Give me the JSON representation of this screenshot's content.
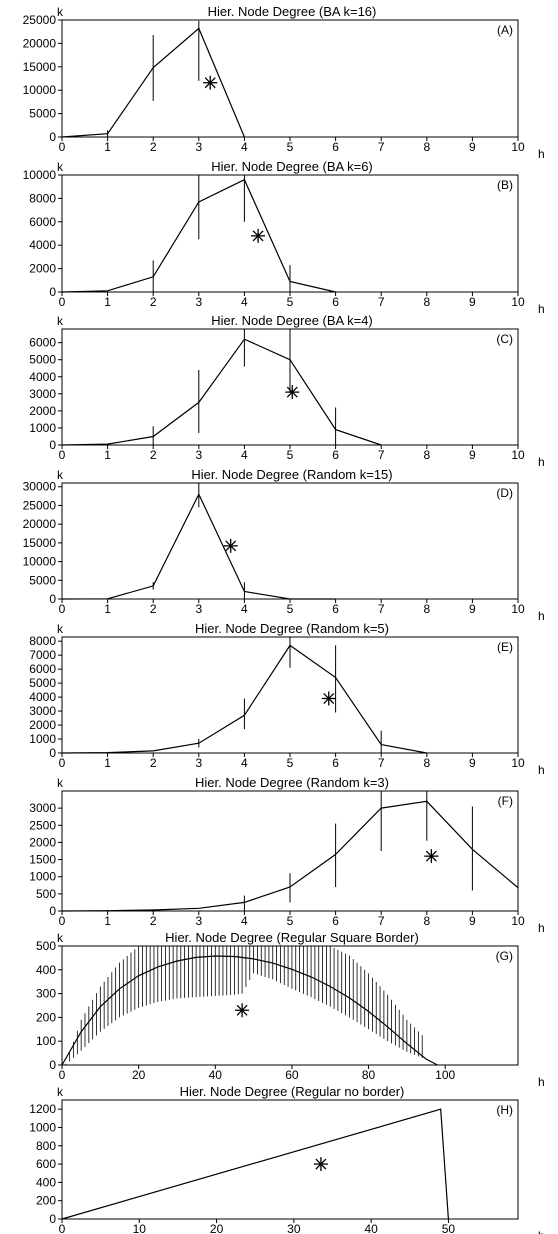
{
  "chart_data": [
    {
      "type": "line",
      "title": "Hier. Node Degree (BA k=16)",
      "ylabel": "k",
      "xlabel": "h",
      "panel": "(A)",
      "xlim": [
        0,
        10
      ],
      "ylim": [
        0,
        25000
      ],
      "xticks": [
        0,
        1,
        2,
        3,
        4,
        5,
        6,
        7,
        8,
        9,
        10
      ],
      "yticks": [
        0,
        5000,
        10000,
        15000,
        20000,
        25000
      ],
      "series": [
        {
          "x": [
            0,
            1,
            2,
            3,
            4
          ],
          "y": [
            0,
            700,
            14800,
            23200,
            0
          ]
        }
      ],
      "error_bars": [
        {
          "x": 1,
          "low": 0,
          "high": 1400
        },
        {
          "x": 2,
          "low": 7700,
          "high": 21800
        },
        {
          "x": 3,
          "low": 12000,
          "high": 24800
        }
      ],
      "marker": {
        "x": 3.25,
        "y": 11600,
        "symbol": "asterisk"
      }
    },
    {
      "type": "line",
      "title": "Hier. Node Degree (BA k=6)",
      "ylabel": "k",
      "xlabel": "h",
      "panel": "(B)",
      "xlim": [
        0,
        10
      ],
      "ylim": [
        0,
        10000
      ],
      "xticks": [
        0,
        1,
        2,
        3,
        4,
        5,
        6,
        7,
        8,
        9,
        10
      ],
      "yticks": [
        0,
        2000,
        4000,
        6000,
        8000,
        10000
      ],
      "series": [
        {
          "x": [
            0,
            1,
            2,
            3,
            4,
            5,
            6
          ],
          "y": [
            0,
            100,
            1300,
            7700,
            9600,
            900,
            0
          ]
        }
      ],
      "error_bars": [
        {
          "x": 2,
          "low": 0,
          "high": 2700
        },
        {
          "x": 3,
          "low": 4500,
          "high": 10400
        },
        {
          "x": 4,
          "low": 6000,
          "high": 10400
        },
        {
          "x": 5,
          "low": 0,
          "high": 2300
        }
      ],
      "marker": {
        "x": 4.3,
        "y": 4800,
        "symbol": "asterisk"
      }
    },
    {
      "type": "line",
      "title": "Hier. Node Degree (BA k=4)",
      "ylabel": "k",
      "xlabel": "h",
      "panel": "(C)",
      "xlim": [
        0,
        10
      ],
      "ylim": [
        0,
        6800
      ],
      "xticks": [
        0,
        1,
        2,
        3,
        4,
        5,
        6,
        7,
        8,
        9,
        10
      ],
      "yticks": [
        0,
        1000,
        2000,
        3000,
        4000,
        5000,
        6000
      ],
      "series": [
        {
          "x": [
            0,
            1,
            2,
            3,
            4,
            5,
            6,
            7
          ],
          "y": [
            0,
            50,
            500,
            2500,
            6200,
            5000,
            900,
            0
          ]
        }
      ],
      "error_bars": [
        {
          "x": 2,
          "low": 0,
          "high": 1100
        },
        {
          "x": 3,
          "low": 700,
          "high": 4400
        },
        {
          "x": 4,
          "low": 4600,
          "high": 6800
        },
        {
          "x": 5,
          "low": 3100,
          "high": 6800
        },
        {
          "x": 6,
          "low": 0,
          "high": 2200
        }
      ],
      "marker": {
        "x": 5.05,
        "y": 3100,
        "symbol": "asterisk"
      }
    },
    {
      "type": "line",
      "title": "Hier. Node Degree (Random k=15)",
      "ylabel": "k",
      "xlabel": "h",
      "panel": "(D)",
      "xlim": [
        0,
        10
      ],
      "ylim": [
        0,
        31000
      ],
      "xticks": [
        0,
        1,
        2,
        3,
        4,
        5,
        6,
        7,
        8,
        9,
        10
      ],
      "yticks": [
        0,
        5000,
        10000,
        15000,
        20000,
        25000,
        30000
      ],
      "series": [
        {
          "x": [
            0,
            1,
            2,
            3,
            4,
            5,
            6
          ],
          "y": [
            0,
            50,
            3500,
            28000,
            2000,
            0,
            0
          ]
        }
      ],
      "error_bars": [
        {
          "x": 2,
          "low": 2500,
          "high": 4500
        },
        {
          "x": 3,
          "low": 24500,
          "high": 31000
        },
        {
          "x": 4,
          "low": 0,
          "high": 4500
        }
      ],
      "marker": {
        "x": 3.7,
        "y": 14200,
        "symbol": "asterisk"
      }
    },
    {
      "type": "line",
      "title": "Hier. Node Degree (Random k=5)",
      "ylabel": "k",
      "xlabel": "h",
      "panel": "(E)",
      "xlim": [
        0,
        10
      ],
      "ylim": [
        0,
        8300
      ],
      "xticks": [
        0,
        1,
        2,
        3,
        4,
        5,
        6,
        7,
        8,
        9,
        10
      ],
      "yticks": [
        0,
        1000,
        2000,
        3000,
        4000,
        5000,
        6000,
        7000,
        8000
      ],
      "series": [
        {
          "x": [
            0,
            1,
            2,
            3,
            4,
            5,
            6,
            7,
            8
          ],
          "y": [
            0,
            30,
            150,
            700,
            2700,
            7700,
            5400,
            600,
            0
          ]
        }
      ],
      "error_bars": [
        {
          "x": 3,
          "low": 400,
          "high": 1000
        },
        {
          "x": 4,
          "low": 1700,
          "high": 3900
        },
        {
          "x": 5,
          "low": 6100,
          "high": 8300
        },
        {
          "x": 6,
          "low": 2900,
          "high": 7700
        },
        {
          "x": 7,
          "low": 0,
          "high": 1600
        }
      ],
      "marker": {
        "x": 5.85,
        "y": 3900,
        "symbol": "asterisk"
      }
    },
    {
      "type": "line",
      "title": "Hier. Node Degree (Random k=3)",
      "ylabel": "k",
      "xlabel": "h",
      "panel": "(F)",
      "xlim": [
        0,
        10
      ],
      "ylim": [
        0,
        3500
      ],
      "xticks": [
        0,
        1,
        2,
        3,
        4,
        5,
        6,
        7,
        8,
        9,
        10
      ],
      "yticks": [
        0,
        500,
        1000,
        1500,
        2000,
        2500,
        3000
      ],
      "series": [
        {
          "x": [
            0,
            1,
            2,
            3,
            4,
            5,
            6,
            7,
            8,
            9,
            10
          ],
          "y": [
            0,
            10,
            30,
            80,
            250,
            700,
            1650,
            3000,
            3200,
            1800,
            680
          ]
        }
      ],
      "error_bars": [
        {
          "x": 4,
          "low": 0,
          "high": 450
        },
        {
          "x": 5,
          "low": 250,
          "high": 1100
        },
        {
          "x": 6,
          "low": 700,
          "high": 2550
        },
        {
          "x": 7,
          "low": 1750,
          "high": 3500
        },
        {
          "x": 8,
          "low": 2050,
          "high": 3500
        },
        {
          "x": 9,
          "low": 600,
          "high": 3050
        }
      ],
      "marker": {
        "x": 8.1,
        "y": 1600,
        "symbol": "asterisk"
      }
    },
    {
      "type": "line",
      "title": "Hier. Node Degree (Regular Square Border)",
      "ylabel": "k",
      "xlabel": "h",
      "panel": "(G)",
      "xlim": [
        0,
        119
      ],
      "ylim": [
        0,
        500
      ],
      "xticks": [
        0,
        20,
        40,
        60,
        80,
        100
      ],
      "yticks": [
        0,
        100,
        200,
        300,
        400,
        500
      ],
      "series": [
        {
          "x": [
            0,
            5,
            10,
            15,
            20,
            25,
            30,
            35,
            40,
            45,
            50,
            55,
            60,
            65,
            70,
            75,
            80,
            85,
            90,
            95,
            98
          ],
          "y": [
            0,
            140,
            245,
            320,
            375,
            412,
            437,
            452,
            458,
            456,
            446,
            428,
            402,
            370,
            330,
            282,
            225,
            160,
            90,
            25,
            0
          ]
        }
      ],
      "error_band": {
        "x": [
          1,
          5,
          10,
          15,
          20,
          25,
          30,
          35,
          40,
          45,
          47,
          50,
          55,
          60,
          65,
          70,
          75,
          80,
          85,
          90,
          94
        ],
        "low": [
          0,
          60,
          140,
          200,
          240,
          265,
          280,
          285,
          290,
          295,
          300,
          385,
          360,
          320,
          285,
          245,
          200,
          150,
          100,
          55,
          30
        ],
        "high": [
          5,
          190,
          330,
          430,
          500,
          500,
          500,
          500,
          500,
          500,
          500,
          500,
          500,
          500,
          500,
          500,
          460,
          385,
          295,
          190,
          125
        ]
      },
      "marker": {
        "x": 47,
        "y": 230,
        "symbol": "asterisk"
      }
    },
    {
      "type": "line",
      "title": "Hier. Node Degree (Regular no border)",
      "ylabel": "k",
      "xlabel": "h",
      "panel": "(H)",
      "xlim": [
        0,
        59
      ],
      "ylim": [
        0,
        1300
      ],
      "xticks": [
        0,
        10,
        20,
        30,
        40,
        50
      ],
      "yticks": [
        0,
        200,
        400,
        600,
        800,
        1000,
        1200
      ],
      "series": [
        {
          "x": [
            0,
            49,
            50
          ],
          "y": [
            0,
            1200,
            0
          ]
        }
      ],
      "marker": {
        "x": 33.5,
        "y": 600,
        "symbol": "asterisk"
      }
    }
  ]
}
